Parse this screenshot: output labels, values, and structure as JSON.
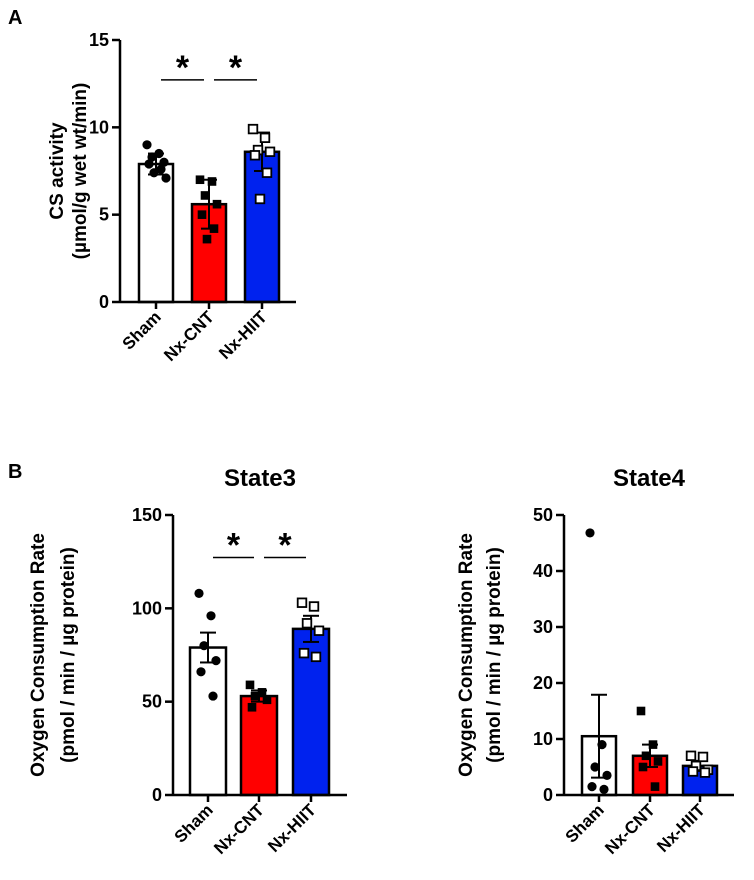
{
  "panel_labels": {
    "a": "A",
    "b": "B"
  },
  "colors": {
    "sham": "#ffffff",
    "nx_cnt": "#ff0000",
    "nx_hiit": "#0022ee",
    "ink": "#000000"
  },
  "chart_data": [
    {
      "id": "cs",
      "type": "bar",
      "title": "",
      "ylabel_line1": "CS activity",
      "ylabel_line2": "(µmol/g wet wt/min)",
      "xlabel": "",
      "ylim": [
        0,
        15
      ],
      "yticks": [
        0,
        5,
        10,
        15
      ],
      "categories": [
        "Sham",
        "Nx-CNT",
        "Nx-HIIT"
      ],
      "values": [
        7.9,
        5.6,
        8.6
      ],
      "errors": [
        0.6,
        1.4,
        1.1
      ],
      "markers": [
        "circle",
        "square",
        "open-square"
      ],
      "points": [
        [
          9.0,
          8.5,
          8.3,
          8.0,
          7.9,
          7.6,
          7.4,
          7.1
        ],
        [
          7.0,
          6.9,
          6.1,
          5.6,
          5.0,
          4.2,
          3.6
        ],
        [
          9.9,
          9.4,
          8.7,
          8.6,
          8.4,
          7.4,
          5.9
        ]
      ],
      "significance": [
        {
          "from": 0,
          "to": 1,
          "label": "*"
        },
        {
          "from": 1,
          "to": 2,
          "label": "*"
        }
      ]
    },
    {
      "id": "state3",
      "type": "bar",
      "title": "State3",
      "ylabel_line1": "Oxygen Consumption Rate",
      "ylabel_line2": "(pmol / min / µg protein)",
      "xlabel": "",
      "ylim": [
        0,
        150
      ],
      "yticks": [
        0,
        50,
        100,
        150
      ],
      "categories": [
        "Sham",
        "Nx-CNT",
        "Nx-HIIT"
      ],
      "values": [
        79,
        53,
        89
      ],
      "errors": [
        8,
        3,
        7
      ],
      "markers": [
        "circle",
        "square",
        "open-square"
      ],
      "points": [
        [
          108,
          96,
          80,
          72,
          66,
          53
        ],
        [
          59,
          55,
          53,
          51,
          47
        ],
        [
          103,
          101,
          92,
          88,
          76,
          74
        ]
      ],
      "significance": [
        {
          "from": 0,
          "to": 1,
          "label": "*"
        },
        {
          "from": 1,
          "to": 2,
          "label": "*"
        }
      ]
    },
    {
      "id": "state4",
      "type": "bar",
      "title": "State4",
      "ylabel_line1": "Oxygen Consumption Rate",
      "ylabel_line2": "(pmol / min / µg protein)",
      "xlabel": "",
      "ylim": [
        0,
        50
      ],
      "yticks": [
        0,
        10,
        20,
        30,
        40,
        50
      ],
      "categories": [
        "Sham",
        "Nx-CNT",
        "Nx-HIIT"
      ],
      "values": [
        10.5,
        7.0,
        5.2
      ],
      "errors": [
        7.4,
        2.0,
        0.9
      ],
      "markers": [
        "circle",
        "square",
        "open-square"
      ],
      "points": [
        [
          46.8,
          9.0,
          5.0,
          3.5,
          1.5,
          1.0
        ],
        [
          15.0,
          9.0,
          7.0,
          6.0,
          5.0,
          1.5
        ],
        [
          7.0,
          6.8,
          5.2,
          4.5,
          4.2,
          4.0
        ]
      ],
      "significance": []
    }
  ]
}
